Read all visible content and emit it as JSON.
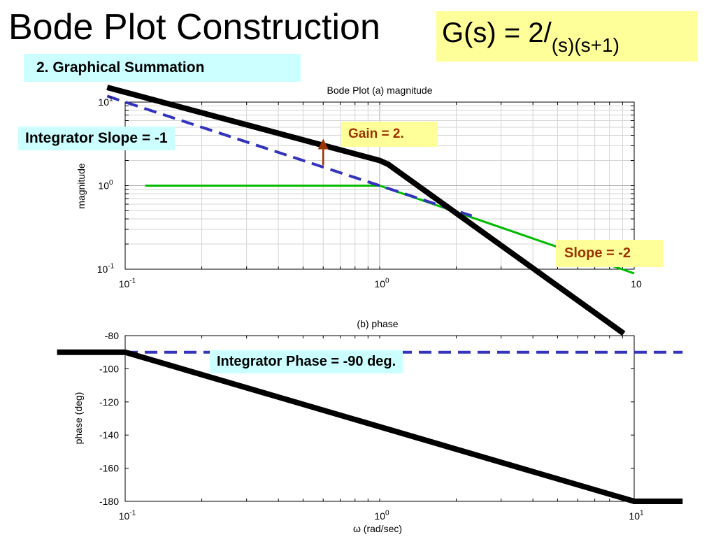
{
  "slide": {
    "title": "Bode Plot Construction",
    "formula_main": "G(s) = 2/",
    "formula_den": "(s)(s+1)",
    "section": "2. Graphical Summation"
  },
  "annotations": {
    "integrator_slope": "Integrator Slope = -1",
    "gain": "Gain  = 2.",
    "slope2": "Slope  = -2",
    "integrator_phase": "Integrator Phase = -90 deg."
  },
  "colors": {
    "composite": "#000000",
    "integrator": "#3333bb",
    "lag": "#00bb00",
    "gain_arrow": "#993300",
    "cyan_box": "#ccffff",
    "yellow_box": "#ffff99"
  },
  "chart_data": [
    {
      "type": "line",
      "title": "Bode Plot  (a) magnitude",
      "ylabel": "magnitude",
      "xscale": "log",
      "yscale": "log",
      "xlim": [
        0.1,
        10
      ],
      "ylim": [
        0.1,
        10
      ],
      "xticks": [
        {
          "base": "10",
          "exp": "-1"
        },
        {
          "base": "10",
          "exp": "0"
        },
        {
          "base": "10",
          "exp": ""
        }
      ],
      "yticks": [
        {
          "base": "10",
          "exp": "-1",
          "value": 0.1
        },
        {
          "base": "10",
          "exp": "0",
          "value": 1
        },
        {
          "base": "10",
          "exp": "1",
          "value": 10
        }
      ],
      "grid": true,
      "series": [
        {
          "style": "thick-solid",
          "color": "#000000",
          "x": [
            0.085,
            1,
            1.08,
            9.1
          ],
          "y": [
            15,
            2,
            1.8,
            0.017
          ]
        },
        {
          "style": "dashed",
          "color": "#3333bb",
          "x": [
            0.085,
            0.1,
            1,
            2.3
          ],
          "y": [
            11.8,
            10,
            1,
            0.435
          ]
        },
        {
          "style": "solid",
          "color": "#00bb00",
          "x": [
            0.12,
            1,
            10
          ],
          "y": [
            1,
            1,
            0.089
          ]
        }
      ],
      "gain_arrow": {
        "x": 0.6,
        "from": 1.75,
        "to": 3.4
      }
    },
    {
      "type": "line",
      "title": "(b) phase",
      "xlabel": "ω (rad/sec)",
      "ylabel": "phase (deg)",
      "xscale": "log",
      "xlim": [
        0.1,
        10
      ],
      "ylim": [
        -180,
        -80
      ],
      "xticks": [
        {
          "base": "10",
          "exp": "-1"
        },
        {
          "base": "10",
          "exp": "0"
        },
        {
          "base": "10",
          "exp": "1"
        }
      ],
      "yticks": [
        -80,
        -100,
        -120,
        -140,
        -160,
        -180
      ],
      "grid": false,
      "series": [
        {
          "style": "thick-solid",
          "color": "#000000",
          "x": [
            0.054,
            0.1,
            10,
            15.5
          ],
          "y": [
            -90,
            -90,
            -180,
            -180
          ]
        },
        {
          "style": "dashed",
          "color": "#3333bb",
          "x": [
            0.1,
            15.5
          ],
          "y": [
            -90,
            -90
          ]
        }
      ]
    }
  ]
}
